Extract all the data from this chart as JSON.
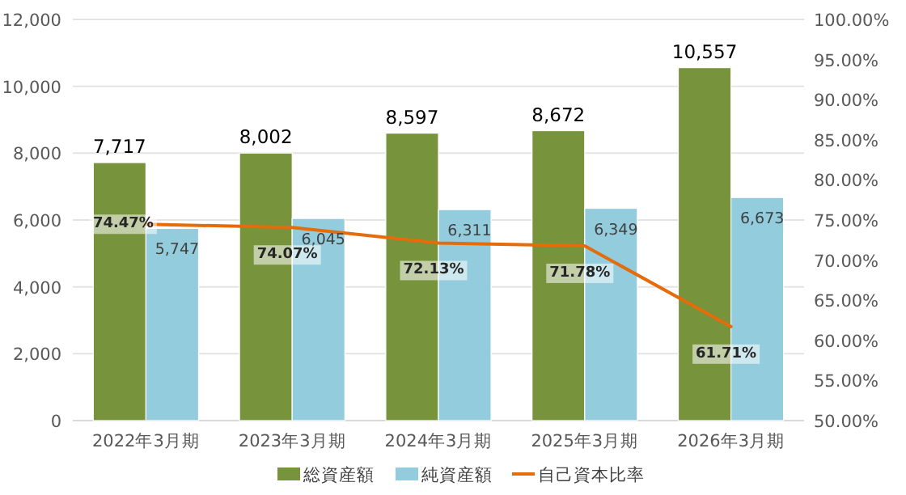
{
  "chart_data": {
    "type": "bar",
    "categories": [
      "2022年3月期",
      "2023年3月期",
      "2024年3月期",
      "2025年3月期",
      "2026年3月期"
    ],
    "series": [
      {
        "name": "総資産額",
        "color": "#77933c",
        "values": [
          7717,
          8002,
          8597,
          8672,
          10557
        ],
        "value_labels": [
          "7,717",
          "8,002",
          "8,597",
          "8,672",
          "10,557"
        ]
      },
      {
        "name": "純資産額",
        "color": "#93cddd",
        "values": [
          5747,
          6045,
          6311,
          6349,
          6673
        ],
        "value_labels": [
          "5,747",
          "6,045",
          "6,311",
          "6,349",
          "6,673"
        ]
      },
      {
        "name": "自己資本比率",
        "type": "line",
        "axis": "y2",
        "color": "#e46c0a",
        "values": [
          74.47,
          74.07,
          72.13,
          71.78,
          61.71
        ],
        "value_labels": [
          "74.47%",
          "74.07%",
          "72.13%",
          "71.78%",
          "61.71%"
        ]
      }
    ],
    "ylim": [
      0,
      12000
    ],
    "yticks": [
      {
        "value": 0,
        "label": "0"
      },
      {
        "value": 2000,
        "label": "2,000"
      },
      {
        "value": 4000,
        "label": "4,000"
      },
      {
        "value": 6000,
        "label": "6,000"
      },
      {
        "value": 8000,
        "label": "8,000"
      },
      {
        "value": 10000,
        "label": "10,000"
      },
      {
        "value": 12000,
        "label": "12,000"
      }
    ],
    "y2lim": [
      50,
      100
    ],
    "y2ticks": [
      {
        "value": 50,
        "label": "50.00%"
      },
      {
        "value": 55,
        "label": "55.00%"
      },
      {
        "value": 60,
        "label": "60.00%"
      },
      {
        "value": 65,
        "label": "65.00%"
      },
      {
        "value": 70,
        "label": "70.00%"
      },
      {
        "value": 75,
        "label": "75.00%"
      },
      {
        "value": 80,
        "label": "80.00%"
      },
      {
        "value": 85,
        "label": "85.00%"
      },
      {
        "value": 90,
        "label": "90.00%"
      },
      {
        "value": 95,
        "label": "95.00%"
      },
      {
        "value": 100,
        "label": "100.00%"
      }
    ],
    "grid": "y",
    "legend": "bottom"
  }
}
